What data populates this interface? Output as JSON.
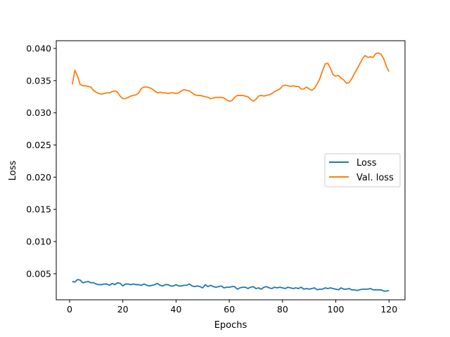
{
  "chart_data": {
    "type": "line",
    "title": "",
    "xlabel": "Epochs",
    "ylabel": "Loss",
    "xlim": [
      -5,
      126
    ],
    "ylim": [
      0.00095,
      0.0412
    ],
    "xticks": [
      0,
      20,
      40,
      60,
      80,
      100,
      120
    ],
    "yticks": [
      0.005,
      0.01,
      0.015,
      0.02,
      0.025,
      0.03,
      0.035,
      0.04
    ],
    "ytick_labels": [
      "0.005",
      "0.010",
      "0.015",
      "0.020",
      "0.025",
      "0.030",
      "0.035",
      "0.040"
    ],
    "legend_position": "center-right",
    "grid": false,
    "x": [
      1,
      2,
      3,
      4,
      5,
      6,
      7,
      8,
      9,
      10,
      11,
      12,
      13,
      14,
      15,
      16,
      17,
      18,
      19,
      20,
      21,
      22,
      23,
      24,
      25,
      26,
      27,
      28,
      29,
      30,
      31,
      32,
      33,
      34,
      35,
      36,
      37,
      38,
      39,
      40,
      41,
      42,
      43,
      44,
      45,
      46,
      47,
      48,
      49,
      50,
      51,
      52,
      53,
      54,
      55,
      56,
      57,
      58,
      59,
      60,
      61,
      62,
      63,
      64,
      65,
      66,
      67,
      68,
      69,
      70,
      71,
      72,
      73,
      74,
      75,
      76,
      77,
      78,
      79,
      80,
      81,
      82,
      83,
      84,
      85,
      86,
      87,
      88,
      89,
      90,
      91,
      92,
      93,
      94,
      95,
      96,
      97,
      98,
      99,
      100,
      101,
      102,
      103,
      104,
      105,
      106,
      107,
      108,
      109,
      110,
      111,
      112,
      113,
      114,
      115,
      116,
      117,
      118,
      119,
      120
    ],
    "series": [
      {
        "name": "Loss",
        "color": "#1f77b4",
        "values": [
          0.0038,
          0.0037,
          0.0041,
          0.004,
          0.0036,
          0.0037,
          0.0038,
          0.0036,
          0.0036,
          0.0034,
          0.0033,
          0.0033,
          0.0034,
          0.0034,
          0.0032,
          0.0035,
          0.0033,
          0.0036,
          0.0035,
          0.0031,
          0.0034,
          0.0034,
          0.0033,
          0.0034,
          0.0033,
          0.0033,
          0.0032,
          0.0034,
          0.0032,
          0.0031,
          0.0032,
          0.0033,
          0.0035,
          0.0032,
          0.0031,
          0.0033,
          0.0033,
          0.0031,
          0.0031,
          0.0033,
          0.0031,
          0.0031,
          0.0032,
          0.0032,
          0.0034,
          0.0031,
          0.003,
          0.0031,
          0.003,
          0.0028,
          0.0033,
          0.003,
          0.0032,
          0.003,
          0.0029,
          0.003,
          0.0031,
          0.0028,
          0.0029,
          0.0029,
          0.003,
          0.003,
          0.0026,
          0.0028,
          0.0029,
          0.0029,
          0.0027,
          0.0029,
          0.003,
          0.0027,
          0.0028,
          0.0026,
          0.0029,
          0.003,
          0.0028,
          0.0027,
          0.0029,
          0.0028,
          0.0029,
          0.0028,
          0.0027,
          0.0029,
          0.0028,
          0.0027,
          0.0028,
          0.0027,
          0.0029,
          0.0026,
          0.0027,
          0.0026,
          0.0027,
          0.0028,
          0.0025,
          0.0026,
          0.0026,
          0.0028,
          0.0027,
          0.0028,
          0.0027,
          0.0026,
          0.0025,
          0.0028,
          0.0026,
          0.0026,
          0.0027,
          0.0025,
          0.0025,
          0.0024,
          0.0025,
          0.0026,
          0.0026,
          0.0026,
          0.0027,
          0.0025,
          0.0025,
          0.0025,
          0.0025,
          0.0023,
          0.0023,
          0.0024
        ]
      },
      {
        "name": "Val. loss",
        "color": "#ff7f0e",
        "values": [
          0.0344,
          0.0366,
          0.0357,
          0.0344,
          0.0342,
          0.0342,
          0.0341,
          0.034,
          0.0335,
          0.0332,
          0.033,
          0.0329,
          0.033,
          0.0331,
          0.0331,
          0.0333,
          0.0334,
          0.0332,
          0.0326,
          0.0322,
          0.0322,
          0.0324,
          0.0326,
          0.0327,
          0.0328,
          0.0331,
          0.0338,
          0.034,
          0.034,
          0.0339,
          0.0337,
          0.0334,
          0.0331,
          0.0332,
          0.0331,
          0.0331,
          0.033,
          0.0331,
          0.0331,
          0.033,
          0.0331,
          0.0334,
          0.0336,
          0.0335,
          0.0334,
          0.0331,
          0.0328,
          0.0327,
          0.0327,
          0.0326,
          0.0325,
          0.0324,
          0.0322,
          0.0323,
          0.0324,
          0.0324,
          0.0324,
          0.0323,
          0.032,
          0.0318,
          0.0319,
          0.0324,
          0.0327,
          0.0327,
          0.0327,
          0.0326,
          0.0325,
          0.0321,
          0.0318,
          0.0321,
          0.0326,
          0.0327,
          0.0326,
          0.0327,
          0.0328,
          0.033,
          0.0333,
          0.0335,
          0.0337,
          0.0342,
          0.0343,
          0.0342,
          0.0341,
          0.0342,
          0.0341,
          0.0341,
          0.0337,
          0.0337,
          0.034,
          0.0337,
          0.0335,
          0.0338,
          0.0345,
          0.0353,
          0.0365,
          0.0376,
          0.0377,
          0.0369,
          0.0359,
          0.0357,
          0.0358,
          0.0354,
          0.0351,
          0.0346,
          0.0347,
          0.0353,
          0.0361,
          0.0368,
          0.0376,
          0.0384,
          0.0389,
          0.0386,
          0.0387,
          0.0386,
          0.0392,
          0.0393,
          0.0391,
          0.0384,
          0.0372,
          0.0364
        ]
      }
    ]
  }
}
